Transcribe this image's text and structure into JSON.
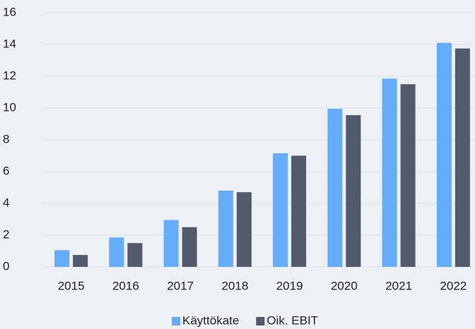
{
  "chart_data": {
    "type": "bar",
    "categories": [
      "2015",
      "2016",
      "2017",
      "2018",
      "2019",
      "2020",
      "2021",
      "2022"
    ],
    "series": [
      {
        "name": "Käyttökate",
        "color": "#64adfa",
        "values": [
          1.05,
          1.85,
          2.95,
          4.8,
          7.15,
          9.95,
          11.85,
          14.1
        ]
      },
      {
        "name": "Oik. EBIT",
        "color": "#525a6b",
        "values": [
          0.75,
          1.5,
          2.5,
          4.7,
          7.0,
          9.55,
          11.5,
          13.75
        ]
      }
    ],
    "ylim": [
      0,
      16
    ],
    "yticks": [
      0,
      2,
      4,
      6,
      8,
      10,
      12,
      14,
      16
    ],
    "grid": true,
    "legend": "bottom"
  }
}
